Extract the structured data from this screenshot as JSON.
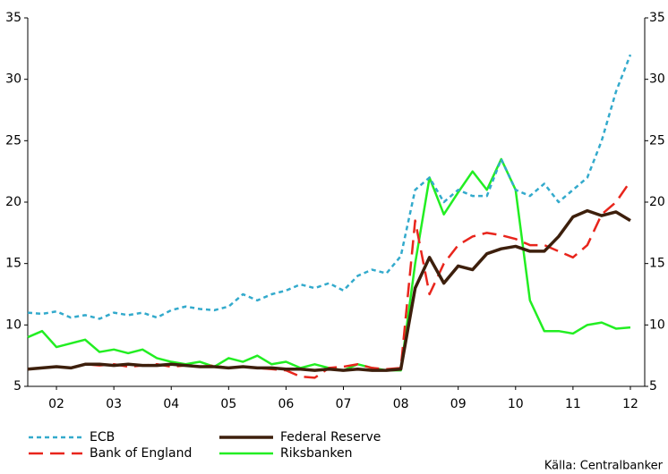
{
  "chart_data": {
    "type": "line",
    "x": [
      2002,
      2002.25,
      2002.5,
      2002.75,
      2003,
      2003.25,
      2003.5,
      2003.75,
      2004,
      2004.25,
      2004.5,
      2004.75,
      2005,
      2005.25,
      2005.5,
      2005.75,
      2006,
      2006.25,
      2006.5,
      2006.75,
      2007,
      2007.25,
      2007.5,
      2007.75,
      2008,
      2008.25,
      2008.5,
      2008.75,
      2009,
      2009.25,
      2009.5,
      2009.75,
      2010,
      2010.25,
      2010.5,
      2010.75,
      2011,
      2011.25,
      2011.5,
      2011.75,
      2012,
      2012.25,
      2012.5
    ],
    "xlim": [
      2002,
      2012.75
    ],
    "xticks": [
      {
        "value": 2002.5,
        "label": "02"
      },
      {
        "value": 2003.5,
        "label": "03"
      },
      {
        "value": 2004.5,
        "label": "04"
      },
      {
        "value": 2005.5,
        "label": "05"
      },
      {
        "value": 2006.5,
        "label": "06"
      },
      {
        "value": 2007.5,
        "label": "07"
      },
      {
        "value": 2008.5,
        "label": "08"
      },
      {
        "value": 2009.5,
        "label": "09"
      },
      {
        "value": 2010.5,
        "label": "10"
      },
      {
        "value": 2011.5,
        "label": "11"
      },
      {
        "value": 2012.5,
        "label": "12"
      }
    ],
    "ylim": [
      5,
      35
    ],
    "yticks": [
      5,
      10,
      15,
      20,
      25,
      30,
      35
    ],
    "y2lim": [
      5,
      35
    ],
    "y2ticks": [
      5,
      10,
      15,
      20,
      25,
      30,
      35
    ],
    "series": [
      {
        "name": "ECB",
        "color": "#33aacc",
        "line_style": "dotted",
        "values": [
          11,
          10.9,
          11.1,
          10.6,
          10.8,
          10.5,
          11,
          10.8,
          11,
          10.6,
          11.2,
          11.5,
          11.3,
          11.2,
          11.5,
          12.5,
          12,
          12.5,
          12.8,
          13.3,
          13,
          13.4,
          12.8,
          14,
          14.5,
          14.2,
          15.6,
          21,
          22,
          20,
          21,
          20.5,
          20.5,
          23.5,
          21,
          20.5,
          21.5,
          20,
          21,
          22,
          25,
          29,
          32
        ]
      },
      {
        "name": "Bank of England",
        "color": "#e8251c",
        "line_style": "dashed",
        "values": [
          6.4,
          6.5,
          6.6,
          6.5,
          6.8,
          6.7,
          6.8,
          6.6,
          6.7,
          6.8,
          6.6,
          6.7,
          6.6,
          6.7,
          6.5,
          6.6,
          6.5,
          6.4,
          6.3,
          5.8,
          5.7,
          6.5,
          6.6,
          6.8,
          6.5,
          6.4,
          6.5,
          18.5,
          12.5,
          15,
          16.5,
          17.2,
          17.5,
          17.3,
          17,
          16.5,
          16.5,
          16,
          15.5,
          16.5,
          19,
          20,
          21.7
        ]
      },
      {
        "name": "Federal Reserve",
        "color": "#3d1f0c",
        "line_style": "thick",
        "values": [
          6.4,
          6.5,
          6.6,
          6.5,
          6.8,
          6.8,
          6.7,
          6.8,
          6.7,
          6.7,
          6.8,
          6.7,
          6.6,
          6.6,
          6.5,
          6.6,
          6.5,
          6.5,
          6.4,
          6.4,
          6.3,
          6.4,
          6.3,
          6.4,
          6.3,
          6.3,
          6.4,
          13,
          15.5,
          13.4,
          14.8,
          14.5,
          15.8,
          16.2,
          16.4,
          16,
          16,
          17.2,
          18.8,
          19.3,
          18.9,
          19.2,
          18.5
        ]
      },
      {
        "name": "Riksbanken",
        "color": "#22ee22",
        "line_style": "solid",
        "values": [
          9,
          9.5,
          8.2,
          8.5,
          8.8,
          7.8,
          8,
          7.7,
          8,
          7.3,
          7,
          6.8,
          7,
          6.6,
          7.3,
          7,
          7.5,
          6.8,
          7,
          6.5,
          6.8,
          6.5,
          6.3,
          6.8,
          6.5,
          6.3,
          6.3,
          15,
          22,
          19,
          20.8,
          22.5,
          21,
          23.5,
          21,
          12,
          9.5,
          9.5,
          9.3,
          10,
          10.2,
          9.7,
          9.8
        ]
      }
    ],
    "source": "Källa: Centralbanker"
  }
}
